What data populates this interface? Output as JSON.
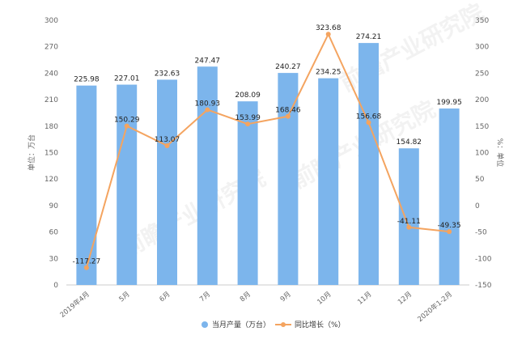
{
  "chart_data": {
    "type": "bar",
    "categories": [
      "2019年4月",
      "5月",
      "6月",
      "7月",
      "8月",
      "9月",
      "10月",
      "11月",
      "12月",
      "2020年1-2月"
    ],
    "series": [
      {
        "name": "当月产量（万台）",
        "type": "bar",
        "axis": "left",
        "color": "#7cb5ec",
        "values": [
          225.98,
          227.01,
          232.63,
          247.47,
          208.09,
          240.27,
          234.25,
          274.21,
          154.82,
          199.95
        ],
        "labels": [
          "225.98",
          "227.01",
          "232.63",
          "247.47",
          "208.09",
          "240.27",
          "234.25",
          "274.21",
          "154.82",
          "199.95"
        ]
      },
      {
        "name": "同比增长（%）",
        "type": "line",
        "axis": "right",
        "color": "#f4a460",
        "values": [
          -117.27,
          150.29,
          113.07,
          180.93,
          153.99,
          168.46,
          323.68,
          156.68,
          -41.11,
          -49.35
        ],
        "labels": [
          "-117.27",
          "150.29",
          "113.07",
          "180.93",
          "153.99",
          "168.46",
          "323.68",
          "156.68",
          "-41.11",
          "-49.35"
        ]
      }
    ],
    "left_axis": {
      "label": "单位：万台",
      "ylim": [
        0,
        300
      ],
      "ticks": [
        "0",
        "30",
        "60",
        "90",
        "120",
        "150",
        "180",
        "210",
        "240",
        "270",
        "300"
      ]
    },
    "right_axis": {
      "label": "%：单位",
      "ylim": [
        -150,
        350
      ],
      "ticks": [
        "-150",
        "-100",
        "-50",
        "0",
        "50",
        "100",
        "150",
        "200",
        "250",
        "300",
        "350"
      ]
    },
    "legend_position": "bottom",
    "grid": false
  }
}
